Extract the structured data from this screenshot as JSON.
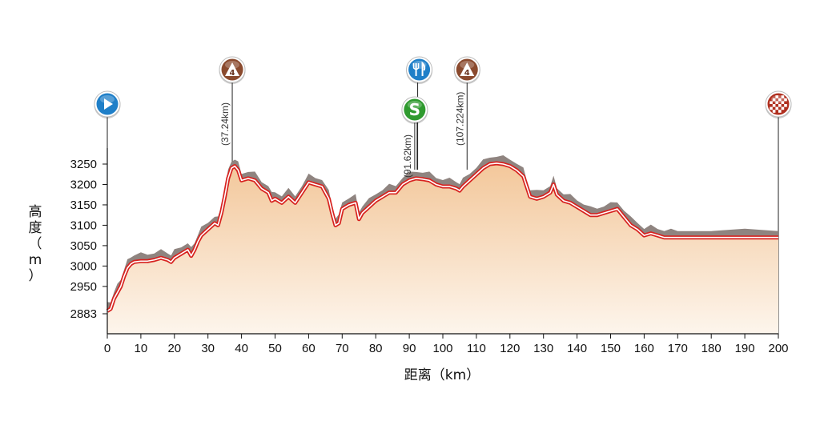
{
  "chart_data": {
    "type": "area",
    "title": "",
    "xlabel": "距离（km）",
    "ylabel": "高度（m）",
    "xlim": [
      0,
      200
    ],
    "ylim": [
      2860,
      3290
    ],
    "x_ticks": [
      "0",
      "10",
      "20",
      "30",
      "40",
      "50",
      "60",
      "70",
      "80",
      "90",
      "100",
      "110",
      "120",
      "130",
      "140",
      "150",
      "160",
      "170",
      "180",
      "190",
      "200"
    ],
    "y_ticks": [
      {
        "value": 2883,
        "label": "2883"
      },
      {
        "value": 2950,
        "label": "2950"
      },
      {
        "value": 3000,
        "label": "3000"
      },
      {
        "value": 3050,
        "label": "3050"
      },
      {
        "value": 3100,
        "label": "3100"
      },
      {
        "value": 3150,
        "label": "3150"
      },
      {
        "value": 3200,
        "label": "3200"
      },
      {
        "value": 3250,
        "label": "3250"
      }
    ],
    "series": [
      {
        "x": [
          0,
          1,
          2,
          3,
          4,
          5,
          6,
          7,
          8,
          10,
          12,
          14,
          16,
          18,
          19,
          20,
          22,
          24,
          25,
          26,
          27,
          28,
          30,
          32,
          33,
          34,
          35,
          36,
          37,
          38,
          39,
          40,
          42,
          44,
          46,
          48,
          49,
          50,
          52,
          54,
          56,
          58,
          60,
          62,
          64,
          66,
          67,
          68,
          69,
          70,
          72,
          74,
          75,
          76,
          78,
          80,
          82,
          84,
          86,
          88,
          90,
          92,
          94,
          96,
          98,
          100,
          102,
          104,
          105,
          106,
          108,
          110,
          112,
          114,
          116,
          118,
          120,
          122,
          124,
          125,
          126,
          128,
          130,
          132,
          133,
          134,
          136,
          138,
          140,
          142,
          144,
          146,
          148,
          150,
          152,
          154,
          156,
          158,
          160,
          162,
          164,
          166,
          168,
          170,
          180,
          190,
          200
        ],
        "y": [
          2890,
          2895,
          2920,
          2935,
          2950,
          2975,
          2995,
          3005,
          3010,
          3012,
          3012,
          3015,
          3020,
          3015,
          3010,
          3020,
          3030,
          3040,
          3025,
          3040,
          3060,
          3075,
          3090,
          3105,
          3100,
          3130,
          3170,
          3215,
          3240,
          3245,
          3235,
          3210,
          3215,
          3210,
          3190,
          3180,
          3160,
          3165,
          3155,
          3170,
          3155,
          3180,
          3205,
          3200,
          3195,
          3165,
          3130,
          3100,
          3105,
          3140,
          3150,
          3155,
          3115,
          3130,
          3145,
          3160,
          3170,
          3180,
          3180,
          3200,
          3210,
          3215,
          3213,
          3210,
          3200,
          3195,
          3195,
          3190,
          3185,
          3195,
          3210,
          3225,
          3240,
          3250,
          3252,
          3250,
          3245,
          3235,
          3220,
          3195,
          3170,
          3165,
          3170,
          3180,
          3200,
          3175,
          3160,
          3155,
          3145,
          3135,
          3125,
          3125,
          3130,
          3135,
          3140,
          3120,
          3100,
          3090,
          3075,
          3080,
          3075,
          3070,
          3070,
          3070,
          3070,
          3070,
          3070
        ]
      }
    ],
    "markers": [
      {
        "km": 0,
        "type": "start",
        "icon": "start-icon",
        "color": "#1f7fc8",
        "label": ""
      },
      {
        "km": 37.24,
        "type": "climb",
        "icon": "mountain-cat4-icon",
        "color": "#8a4a2e",
        "category": "4",
        "label": "(37.24km)"
      },
      {
        "km": 91.62,
        "type": "sprint",
        "icon": "sprint-icon",
        "color": "#2f9a2f",
        "letter": "S",
        "label": "(91.62km)"
      },
      {
        "km": 92.5,
        "type": "feed",
        "icon": "feed-zone-icon",
        "color": "#1f7fc8",
        "label": ""
      },
      {
        "km": 107.224,
        "type": "climb",
        "icon": "mountain-cat4-icon",
        "color": "#8a4a2e",
        "category": "4",
        "label": "(107.224km)"
      },
      {
        "km": 200,
        "type": "finish",
        "icon": "finish-flag-icon",
        "color": "#b03020",
        "label": ""
      }
    ],
    "colors": {
      "fill_top": "#f3c79a",
      "fill_bottom": "#fdf5ec",
      "shadow": "#8f8480",
      "road": "#d7221f",
      "axis": "#111111"
    },
    "grid": false,
    "legend": "none"
  }
}
